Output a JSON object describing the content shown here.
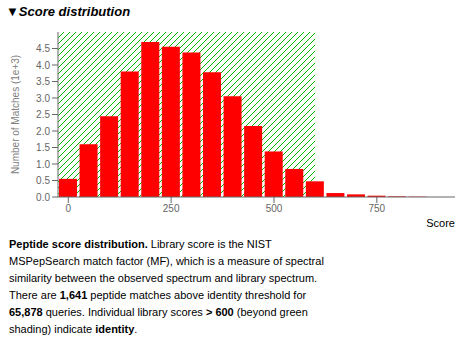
{
  "chart_data": {
    "type": "bar",
    "title": "▼Score distribution",
    "x": [
      0,
      50,
      100,
      150,
      200,
      250,
      300,
      350,
      400,
      450,
      500,
      550,
      600,
      650,
      700,
      750,
      800,
      850
    ],
    "values": [
      0.55,
      1.6,
      2.45,
      3.8,
      4.7,
      4.55,
      4.38,
      3.78,
      3.05,
      2.15,
      1.38,
      0.85,
      0.475,
      0.12,
      0.08,
      0.04,
      0.02,
      0.01
    ],
    "color": "#ff0000",
    "xlabel": "Score",
    "ylabel": "Number of Matches (1e+3)",
    "xlim": [
      -25,
      940
    ],
    "xticks": [
      0,
      250,
      500,
      750
    ],
    "ylim": [
      0,
      5.0
    ],
    "yticks": [
      {
        "value": 0,
        "label": "0.0"
      },
      0.5,
      {
        "value": 1,
        "label": "1.0"
      },
      1.5,
      {
        "value": 2,
        "label": "2.0"
      },
      2.5,
      {
        "value": 3,
        "label": "3.0"
      },
      3.5,
      {
        "value": 4,
        "label": "4.0"
      },
      4.5
    ],
    "threshold": 600,
    "threshold_color": "#00bb00",
    "annotations": [
      [
        {
          "text": "Peptide score distribution.",
          "bold": true
        },
        {
          "text": " Library score is the NIST",
          "bold": false
        }
      ],
      [
        {
          "text": "MSPepSearch match factor (MF), which is a measure of spectral",
          "bold": false
        }
      ],
      [
        {
          "text": "similarity between the observed spectrum and library spectrum.",
          "bold": false
        }
      ],
      [
        {
          "text": "There are ",
          "bold": false
        },
        {
          "text": "1,641",
          "bold": true
        },
        {
          "text": " peptide matches above identity threshold for",
          "bold": false
        }
      ],
      [
        {
          "text": "65,878",
          "bold": true
        },
        {
          "text": " queries. Individual library scores ",
          "bold": false
        },
        {
          "text": "> 600",
          "bold": true
        },
        {
          "text": " (beyond green",
          "bold": false
        }
      ],
      [
        {
          "text": "shading) indicate ",
          "bold": false
        },
        {
          "text": "identity",
          "bold": true
        },
        {
          "text": ".",
          "bold": false
        }
      ]
    ]
  }
}
